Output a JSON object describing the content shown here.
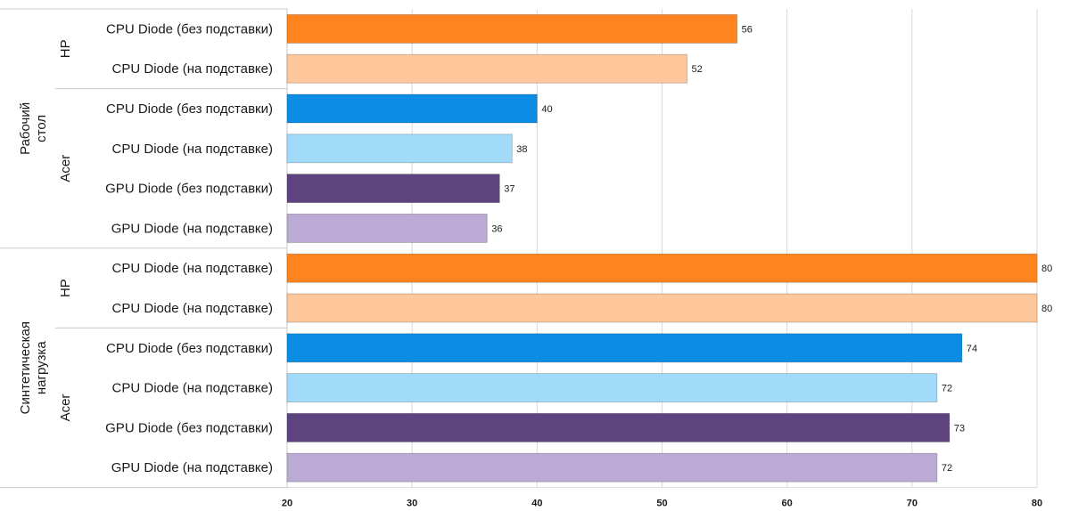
{
  "chart_data": {
    "type": "bar",
    "orientation": "horizontal",
    "xlim": [
      20,
      80
    ],
    "x_ticks": [
      "20",
      "30",
      "40",
      "50",
      "60",
      "70",
      "80"
    ],
    "grid": true,
    "groups": [
      {
        "label": "Рабочий стол",
        "subgroups": [
          {
            "label": "HP",
            "bars": [
              {
                "label": "CPU Diode (без подставки)",
                "value": 56,
                "color": "#fe8420"
              },
              {
                "label": "CPU Diode (на подставке)",
                "value": 52,
                "color": "#fec79c"
              }
            ]
          },
          {
            "label": "Acer",
            "bars": [
              {
                "label": "CPU Diode (без подставки)",
                "value": 40,
                "color": "#0b8de4"
              },
              {
                "label": "CPU Diode (на подставке)",
                "value": 38,
                "color": "#a2dafa"
              },
              {
                "label": "GPU Diode (без подставки)",
                "value": 37,
                "color": "#5d447f"
              },
              {
                "label": "GPU Diode (на подставке)",
                "value": 36,
                "color": "#bbaad4"
              }
            ]
          }
        ]
      },
      {
        "label": "Синтетическая нагрузка",
        "subgroups": [
          {
            "label": "HP",
            "bars": [
              {
                "label": "CPU Diode (на подставке)",
                "value": 80,
                "color": "#fe8420"
              },
              {
                "label": "CPU Diode (на подставке)",
                "value": 80,
                "color": "#fec79c"
              }
            ]
          },
          {
            "label": "Acer",
            "bars": [
              {
                "label": "CPU Diode (без подставки)",
                "value": 74,
                "color": "#0b8de4"
              },
              {
                "label": "CPU Diode (на подставке)",
                "value": 72,
                "color": "#a2dafa"
              },
              {
                "label": "GPU Diode (без подставки)",
                "value": 73,
                "color": "#5d447f"
              },
              {
                "label": "GPU Diode (на подставке)",
                "value": 72,
                "color": "#bbaad4"
              }
            ]
          }
        ]
      }
    ]
  }
}
